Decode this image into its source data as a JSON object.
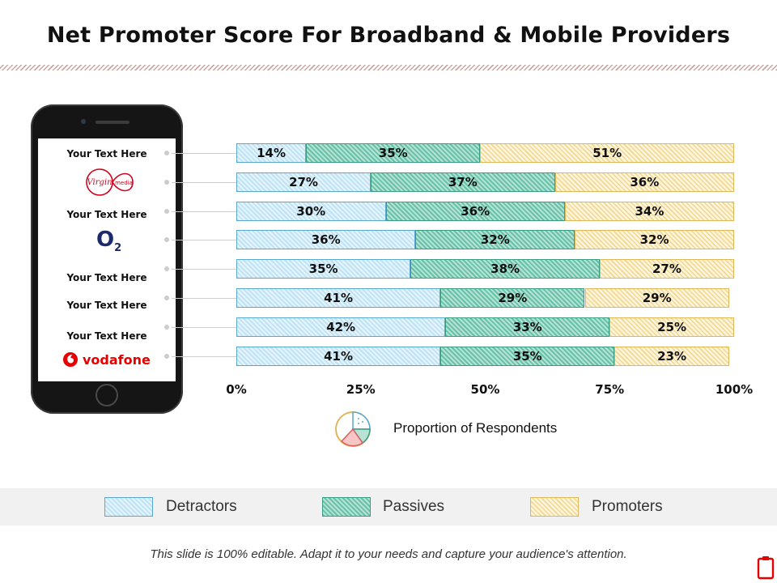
{
  "title": "Net Promoter Score For Broadband & Mobile Providers",
  "rows": [
    {
      "label": "Your Text Here",
      "logo": null
    },
    {
      "label": "",
      "logo": "virgin-media-logo"
    },
    {
      "label": "Your Text Here",
      "logo": null
    },
    {
      "label": "",
      "logo": "o2-logo"
    },
    {
      "label": "Your Text Here",
      "logo": null
    },
    {
      "label": "Your Text Here",
      "logo": null
    },
    {
      "label": "Your Text Here",
      "logo": null
    },
    {
      "label": "",
      "logo": "vodafone-logo"
    }
  ],
  "logos": {
    "virgin_top": "Virgin",
    "virgin_media": "media",
    "o2_letter": "O",
    "o2_sub": "2",
    "vodafone": "vodafone"
  },
  "chart_data": {
    "type": "bar",
    "orientation": "horizontal",
    "stacked": true,
    "series": [
      {
        "name": "Detractors",
        "values": [
          14,
          27,
          30,
          36,
          35,
          41,
          42,
          41
        ],
        "color": "#bfe3f5"
      },
      {
        "name": "Passives",
        "values": [
          35,
          37,
          36,
          32,
          38,
          29,
          33,
          35
        ],
        "color": "#67c1a8"
      },
      {
        "name": "Promoters",
        "values": [
          51,
          36,
          34,
          32,
          27,
          29,
          25,
          23
        ],
        "color": "#f3d78f"
      }
    ],
    "x_ticks": [
      "0%",
      "25%",
      "50%",
      "75%",
      "100%"
    ],
    "xlim": [
      0,
      100
    ],
    "xlabel": "Proportion of Respondents",
    "legend_placement": "bottom",
    "grid": false
  },
  "legend": {
    "detractors": "Detractors",
    "passives": "Passives",
    "promoters": "Promoters"
  },
  "footer": "This slide is 100% editable. Adapt it to your needs and capture your audience's attention.",
  "colors": {
    "title_rule": "#c9a7a3",
    "vodafone_red": "#e60000",
    "o2_navy": "#1b2a6b"
  }
}
